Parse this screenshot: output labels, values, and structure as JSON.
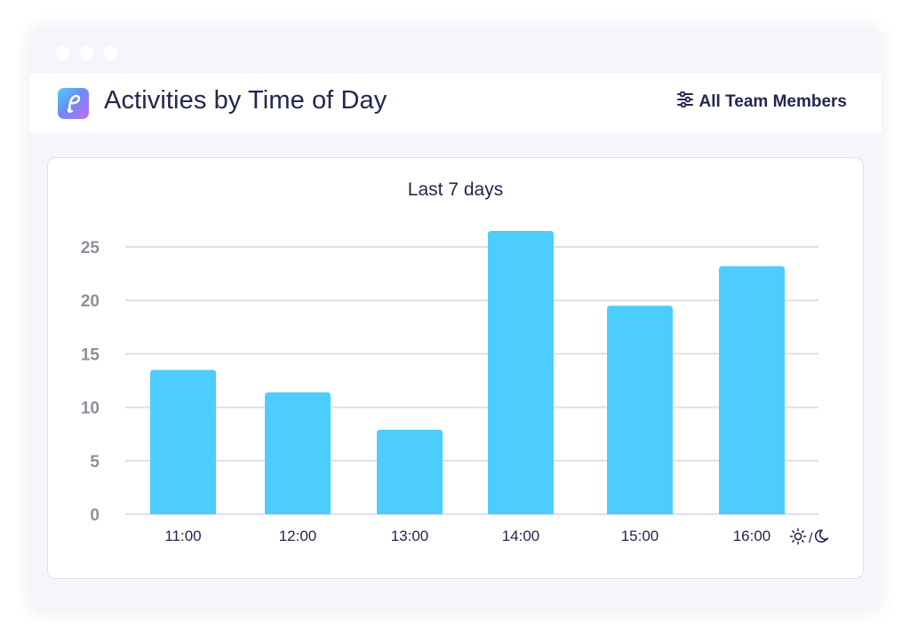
{
  "window": {
    "dots": [
      "dot",
      "dot",
      "dot"
    ]
  },
  "header": {
    "title": "Activities by Time of Day",
    "logo_icon": "app-logo-icon",
    "filter": {
      "icon": "sliders-icon",
      "label": "All Team Members"
    }
  },
  "chart_data": {
    "type": "bar",
    "title": "Last 7 days",
    "xlabel": "",
    "ylabel": "",
    "categories": [
      "11:00",
      "12:00",
      "13:00",
      "14:00",
      "15:00",
      "16:00"
    ],
    "values": [
      13.5,
      11.4,
      7.9,
      26.5,
      19.5,
      23.2
    ],
    "ylim": [
      0,
      25
    ],
    "yticks": [
      0,
      5,
      10,
      15,
      20,
      25
    ],
    "grid": true,
    "legend": "none",
    "bar_color": "#4dcdfd"
  },
  "theme_toggle": {
    "sun_icon": "sun-icon",
    "separator": "/",
    "moon_icon": "moon-icon"
  },
  "colors": {
    "text": "#24264f",
    "axis_labels": "#8d8f99",
    "grid": "#dedfee",
    "bar": "#4dcdfd"
  }
}
